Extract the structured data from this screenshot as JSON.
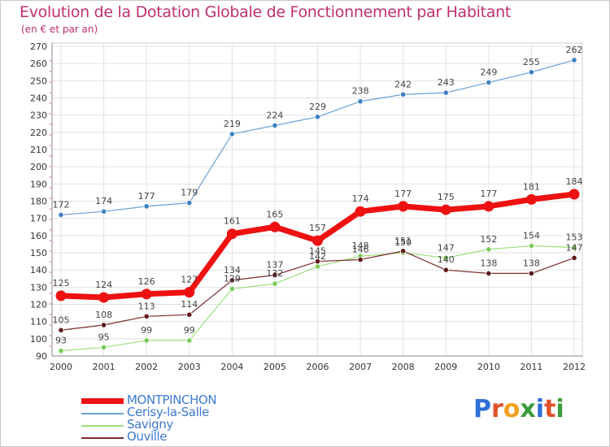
{
  "title": "Evolution de la Dotation Globale de Fonctionnement par Habitant",
  "subtitle": "(en € et par an)",
  "logo": {
    "letters": [
      "P",
      "r",
      "o",
      "x",
      "i",
      "t",
      "i"
    ],
    "colors": [
      "#2f6fd6",
      "#e0532a",
      "#f0a020",
      "#3c9b3c",
      "#2f6fd6",
      "#e0532a",
      "#3c9b3c"
    ]
  },
  "chart_data": {
    "type": "line",
    "title": "Evolution de la Dotation Globale de Fonctionnement par Habitant",
    "ylabel": "(en € et par an)",
    "xlabel": "",
    "x": [
      "2000",
      "2001",
      "2002",
      "2003",
      "2004",
      "2005",
      "2006",
      "2007",
      "2008",
      "2009",
      "2010",
      "2011",
      "2012"
    ],
    "ylim": [
      90,
      270
    ],
    "yticks": [
      90,
      100,
      110,
      120,
      130,
      140,
      150,
      160,
      170,
      180,
      190,
      200,
      210,
      220,
      230,
      240,
      250,
      260,
      270
    ],
    "grid": true,
    "legend_position": "bottom-left",
    "series": [
      {
        "name": "Cerisy-la-Salle",
        "color": "#6a9fd4",
        "marker": "#3d80c4",
        "values": [
          172,
          174,
          177,
          179,
          219,
          224,
          229,
          238,
          242,
          243,
          249,
          255,
          262
        ]
      },
      {
        "name": "Savigny",
        "color": "#9be07a",
        "marker": "#7ac95a",
        "values": [
          93,
          95,
          99,
          99,
          129,
          132,
          142,
          148,
          150,
          147,
          152,
          154,
          153
        ]
      },
      {
        "name": "Ouville",
        "color": "#7a2a2a",
        "marker": "#5e1a1a",
        "values": [
          105,
          108,
          113,
          114,
          134,
          137,
          145,
          146,
          151,
          140,
          138,
          138,
          147
        ]
      },
      {
        "name": "MONTPINCHON",
        "color": "#ee1111",
        "marker": "#ee1111",
        "values": [
          125,
          124,
          126,
          127,
          161,
          165,
          157,
          174,
          177,
          175,
          177,
          181,
          184
        ]
      }
    ]
  }
}
